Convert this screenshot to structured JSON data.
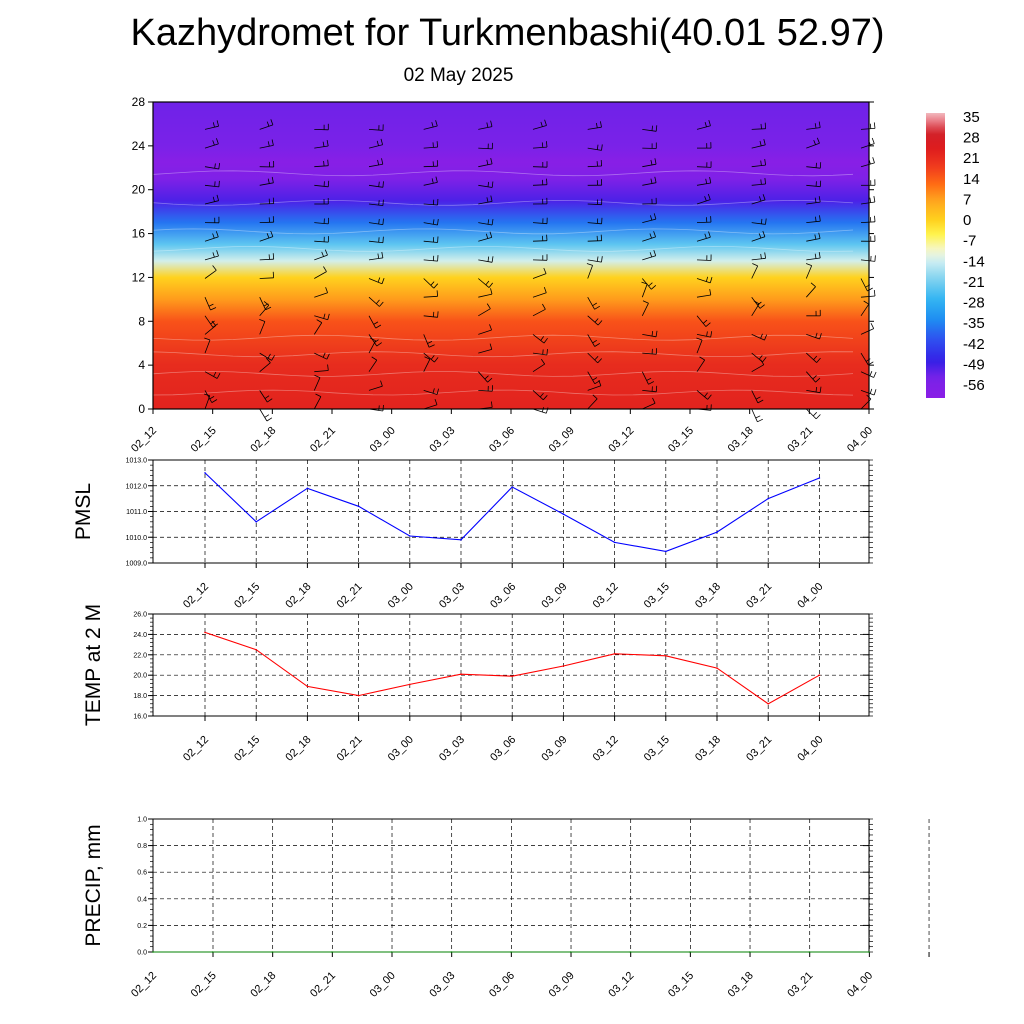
{
  "page": {
    "title": "Kazhydromet for Turkmenbashi(40.01 52.97)",
    "date": "02 May 2025"
  },
  "chart_data": [
    {
      "type": "heatmap",
      "title": "",
      "x_labels": [
        "02_12",
        "02_15",
        "02_18",
        "02_21",
        "03_00",
        "03_03",
        "03_06",
        "03_09",
        "03_12",
        "03_15",
        "03_18",
        "03_21",
        "04_00"
      ],
      "y_ticks": [
        0,
        4,
        8,
        12,
        16,
        20,
        24,
        28
      ],
      "ylim": [
        0,
        28
      ],
      "colorbar": {
        "labels": [
          "35",
          "28",
          "21",
          "14",
          "7",
          "0",
          "-7",
          "-14",
          "-21",
          "-28",
          "-35",
          "-42",
          "-49",
          "-56"
        ],
        "range": [
          -63,
          38
        ]
      },
      "profile": {
        "heights": [
          0,
          4,
          8,
          10,
          12,
          13.5,
          15,
          17,
          19,
          21,
          22.5,
          24,
          28
        ],
        "values": [
          24,
          22,
          16,
          8,
          0,
          -14,
          -24,
          -38,
          -52,
          -58,
          -62,
          -56,
          -55
        ]
      },
      "wind_barbs": "black, every 3h, all levels"
    },
    {
      "type": "line",
      "ylabel": "PMSL",
      "x_labels": [
        "02_12",
        "02_15",
        "02_18",
        "02_21",
        "03_00",
        "03_03",
        "03_06",
        "03_09",
        "03_12",
        "03_15",
        "03_18",
        "03_21",
        "04_00"
      ],
      "values": [
        1012.5,
        1010.6,
        1011.9,
        1011.2,
        1010.05,
        1009.9,
        1011.95,
        1010.9,
        1009.8,
        1009.45,
        1010.2,
        1011.5,
        1012.3
      ],
      "y_ticks": [
        "1009.0",
        "1010.0",
        "1011.0",
        "1012.0",
        "1013.0"
      ],
      "ylim": [
        1009,
        1013
      ],
      "color": "#0000ff",
      "grid": true
    },
    {
      "type": "line",
      "ylabel": "TEMP at 2 M",
      "x_labels": [
        "02_12",
        "02_15",
        "02_18",
        "02_21",
        "03_00",
        "03_03",
        "03_06",
        "03_09",
        "03_12",
        "03_15",
        "03_18",
        "03_21",
        "04_00"
      ],
      "values": [
        24.2,
        22.5,
        18.9,
        18.0,
        19.1,
        20.1,
        19.9,
        20.9,
        22.1,
        21.9,
        20.7,
        17.2,
        20.0
      ],
      "y_ticks": [
        "16.0",
        "18.0",
        "20.0",
        "22.0",
        "24.0",
        "26.0"
      ],
      "ylim": [
        16,
        26
      ],
      "color": "#ff0000",
      "grid": true
    },
    {
      "type": "line",
      "ylabel": "PRECIP, mm",
      "x_labels": [
        "02_12",
        "02_15",
        "02_18",
        "02_21",
        "03_00",
        "03_03",
        "03_06",
        "03_09",
        "03_12",
        "03_15",
        "03_18",
        "03_21",
        "04_00"
      ],
      "values": [
        0,
        0,
        0,
        0,
        0,
        0,
        0,
        0,
        0,
        0,
        0,
        0,
        0
      ],
      "y_ticks": [
        "0.0",
        "0.2",
        "0.4",
        "0.6",
        "0.8",
        "1.0"
      ],
      "ylim": [
        0,
        1
      ],
      "color": "#008000",
      "grid": true
    }
  ]
}
